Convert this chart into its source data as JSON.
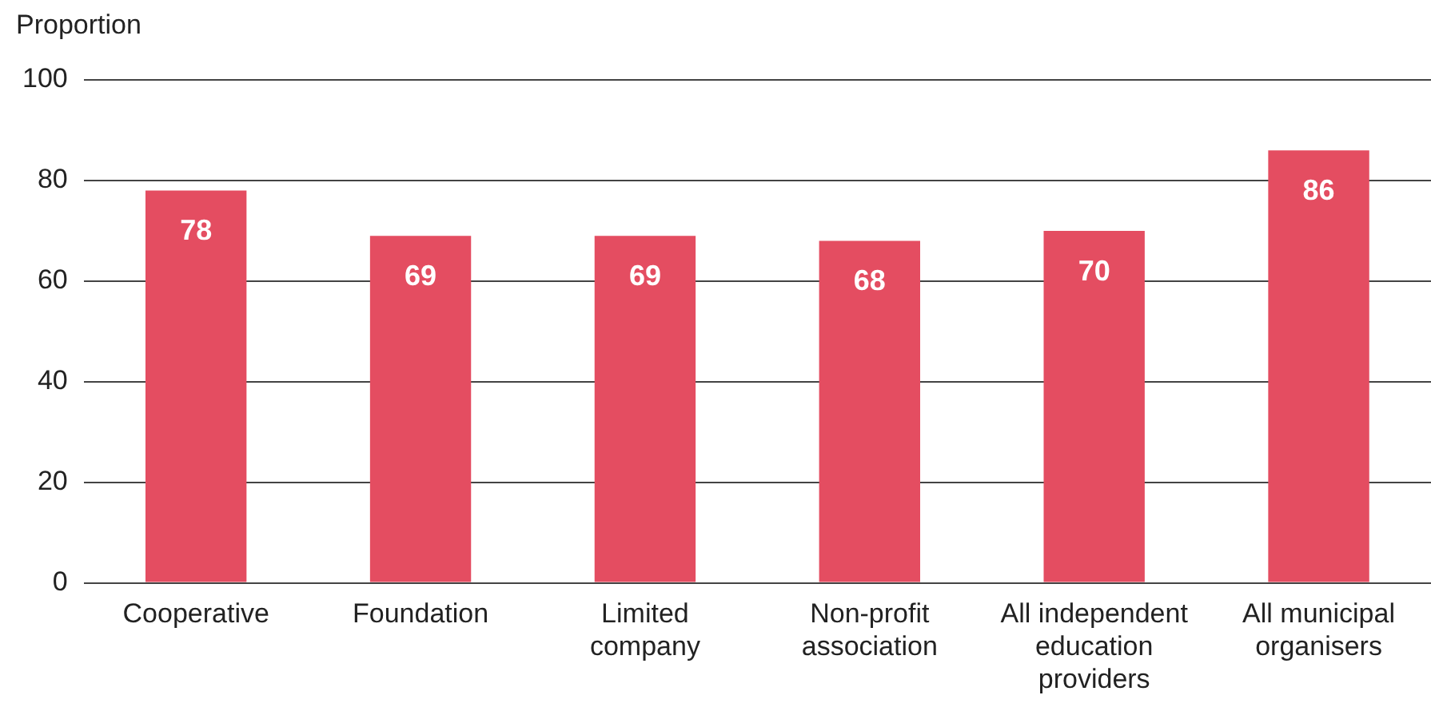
{
  "chart_data": {
    "type": "bar",
    "ylabel": "Proportion",
    "categories": [
      "Cooperative",
      "Foundation",
      "Limited company",
      "Non-profit association",
      "All independent education providers",
      "All municipal organisers"
    ],
    "values": [
      78,
      69,
      69,
      68,
      70,
      86
    ],
    "color": "#e44d61",
    "ylim": [
      0,
      100
    ],
    "yticks": [
      0,
      20,
      40,
      60,
      80,
      100
    ],
    "grid": "y",
    "data_labels": true
  }
}
